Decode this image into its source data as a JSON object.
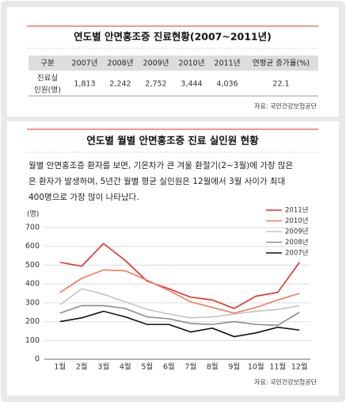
{
  "table": {
    "title": "연도별 안면홍조증 진료현황(2007~2011년)",
    "header": [
      "구분",
      "2007년",
      "2008년",
      "2009년",
      "2010년",
      "2011년",
      "연평균 증가율(%)"
    ],
    "rows": [
      [
        [
          "진료실",
          "인원(명)"
        ],
        "1,813",
        "2,242",
        "2,752",
        "3,444",
        "4,036",
        "22.1"
      ]
    ],
    "source": "자료: 국민건강보험공단"
  },
  "section": {
    "title": "연도별 월별 안면홍조증 진료 실인원 현황",
    "paragraph": [
      "월별 안면홍조증 환자를 보면, 기온차가 큰 겨울 환절기(2~3월)에 가장 많은",
      "은 환자가 발생하며, 5년간 월별 평균 실인원은 12월에서 3월 사이가 최대",
      "400명으로 가장 많이 나타났다."
    ]
  },
  "chart_data": {
    "type": "line",
    "y_label": "(명)",
    "categories": [
      "1월",
      "2월",
      "3월",
      "4월",
      "5월",
      "6월",
      "7월",
      "8월",
      "9월",
      "10월",
      "11월",
      "12월"
    ],
    "ylim": [
      0,
      700
    ],
    "yticks": [
      0,
      100,
      200,
      300,
      400,
      500,
      600,
      700
    ],
    "grid": true,
    "legend": "top-right",
    "series": [
      {
        "name": "2011년",
        "color": "#e0302a",
        "values": [
          515,
          495,
          615,
          525,
          415,
          375,
          330,
          315,
          270,
          335,
          355,
          515
        ]
      },
      {
        "name": "2010년",
        "color": "#f07a5a",
        "values": [
          355,
          430,
          475,
          470,
          420,
          365,
          305,
          275,
          245,
          275,
          315,
          350
        ]
      },
      {
        "name": "2009년",
        "color": "#c4c4c4",
        "values": [
          290,
          375,
          345,
          305,
          265,
          240,
          220,
          225,
          240,
          255,
          265,
          285
        ]
      },
      {
        "name": "2008년",
        "color": "#8a8a8a",
        "values": [
          245,
          285,
          285,
          270,
          225,
          215,
          190,
          185,
          200,
          185,
          180,
          250
        ]
      },
      {
        "name": "2007년",
        "color": "#111111",
        "values": [
          200,
          220,
          255,
          225,
          185,
          185,
          145,
          165,
          120,
          140,
          170,
          155
        ]
      }
    ],
    "source": "자료: 국민건강보험공단"
  }
}
